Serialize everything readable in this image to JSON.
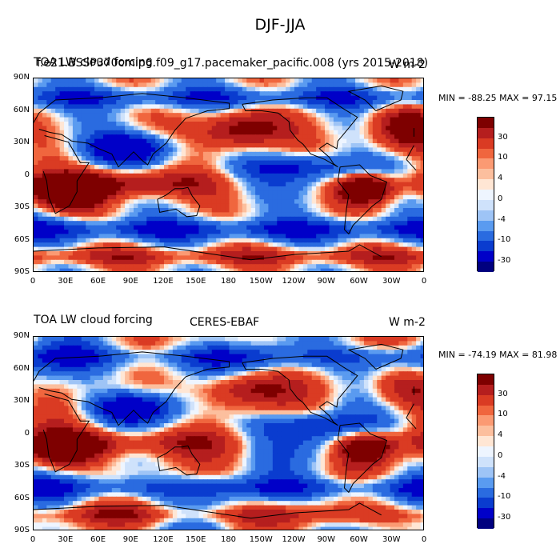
{
  "figure_title": "DJF-JJA",
  "colors": [
    "#00007f",
    "#0000c8",
    "#0a3ccf",
    "#2a6be0",
    "#5a9bf0",
    "#9ec4f6",
    "#cfe2fb",
    "#eef5ff",
    "#ffe6d4",
    "#fcbf9e",
    "#fb9a73",
    "#f0663e",
    "#da3b23",
    "#b51e1e",
    "#7e0000"
  ],
  "colorbar_ticks": [
    "30",
    "10",
    "4",
    "0",
    "-4",
    "-10",
    "-30"
  ],
  "axes": {
    "y_ticks": [
      "90N",
      "60N",
      "30N",
      "0",
      "30S",
      "60S",
      "90S"
    ],
    "x_ticks": [
      "0",
      "30E",
      "60E",
      "90E",
      "120E",
      "150E",
      "180",
      "150W",
      "120W",
      "90W",
      "60W",
      "30W",
      "0"
    ]
  },
  "panels": [
    {
      "left_label_a": "TOA LW cloud forcing",
      "left_label_b": "f.e21.BSSP370cmip6.f09_g17.pacemaker_pacific.008 (yrs 2015-2018)",
      "right_label": "W m-2",
      "min_max": "MIN = -88.25 MAX =  97.15"
    },
    {
      "left_label": "TOA LW cloud forcing",
      "center_label": "CERES-EBAF",
      "right_label": "W m-2",
      "min_max": "MIN = -74.19 MAX =  81.98"
    }
  ],
  "chart_data": [
    {
      "type": "heatmap",
      "title": "DJF-JJA",
      "subtitle": "f.e21.BSSP370cmip6.f09_g17.pacemaker_pacific.008 (yrs 2015-2018)",
      "variable": "TOA LW cloud forcing",
      "units": "W m-2",
      "x_range": [
        0,
        360
      ],
      "y_range": [
        -90,
        90
      ],
      "levels": [
        -30,
        -10,
        -4,
        0,
        4,
        10,
        30
      ],
      "min": -88.25,
      "max": 97.15
    },
    {
      "type": "heatmap",
      "title": "DJF-JJA",
      "subtitle": "CERES-EBAF",
      "variable": "TOA LW cloud forcing",
      "units": "W m-2",
      "x_range": [
        0,
        360
      ],
      "y_range": [
        -90,
        90
      ],
      "levels": [
        -30,
        -10,
        -4,
        0,
        4,
        10,
        30
      ],
      "min": -74.19,
      "max": 81.98
    }
  ]
}
